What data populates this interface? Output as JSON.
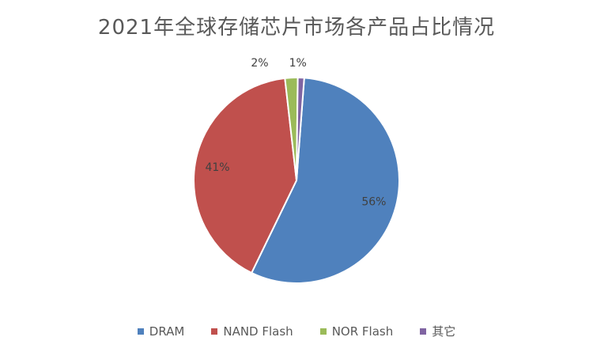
{
  "chart_data": {
    "type": "pie",
    "title": "2021年全球存储芯片市场各产品占比情况",
    "slices": [
      {
        "name": "DRAM",
        "value": 56,
        "label": "56%",
        "color": "#4f81bd"
      },
      {
        "name": "NAND Flash",
        "value": 41,
        "label": "41%",
        "color": "#c0504d"
      },
      {
        "name": "NOR Flash",
        "value": 2,
        "label": "2%",
        "color": "#9bbb59"
      },
      {
        "name": "其它",
        "value": 1,
        "label": "1%",
        "color": "#8064a2"
      }
    ],
    "legend_position": "bottom"
  }
}
